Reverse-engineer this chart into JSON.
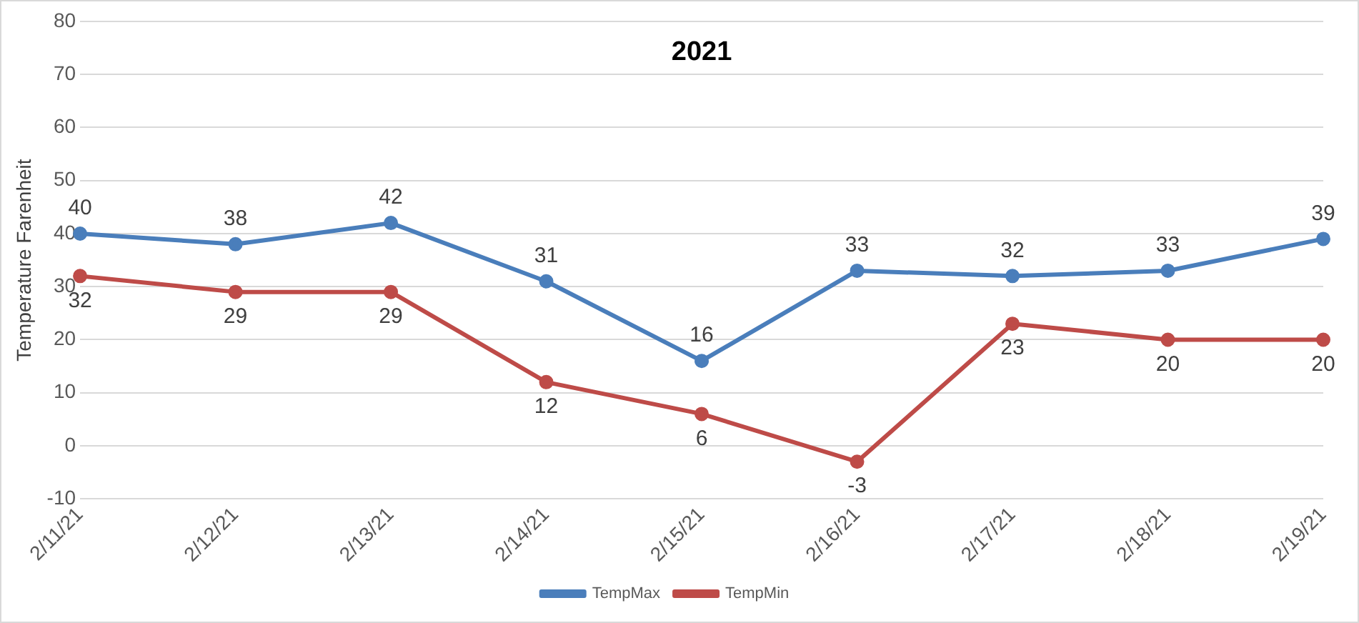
{
  "chart_data": {
    "type": "line",
    "title": "2021",
    "ylabel": "Temperature Farenheit",
    "categories": [
      "2/11/21",
      "2/12/21",
      "2/13/21",
      "2/14/21",
      "2/15/21",
      "2/16/21",
      "2/17/21",
      "2/18/21",
      "2/19/21"
    ],
    "series": [
      {
        "name": "TempMax",
        "color": "#4a7ebb",
        "values": [
          40,
          38,
          42,
          31,
          16,
          33,
          32,
          33,
          39
        ]
      },
      {
        "name": "TempMin",
        "color": "#be4b48",
        "values": [
          32,
          29,
          29,
          12,
          6,
          -3,
          23,
          20,
          20
        ]
      }
    ],
    "ylim": [
      -10,
      80
    ],
    "yticks": [
      -10,
      0,
      10,
      20,
      30,
      40,
      50,
      60,
      70,
      80
    ],
    "grid": "y",
    "legend": "bottom",
    "marker": "circle",
    "line_style": "solid",
    "data_labels": true
  }
}
